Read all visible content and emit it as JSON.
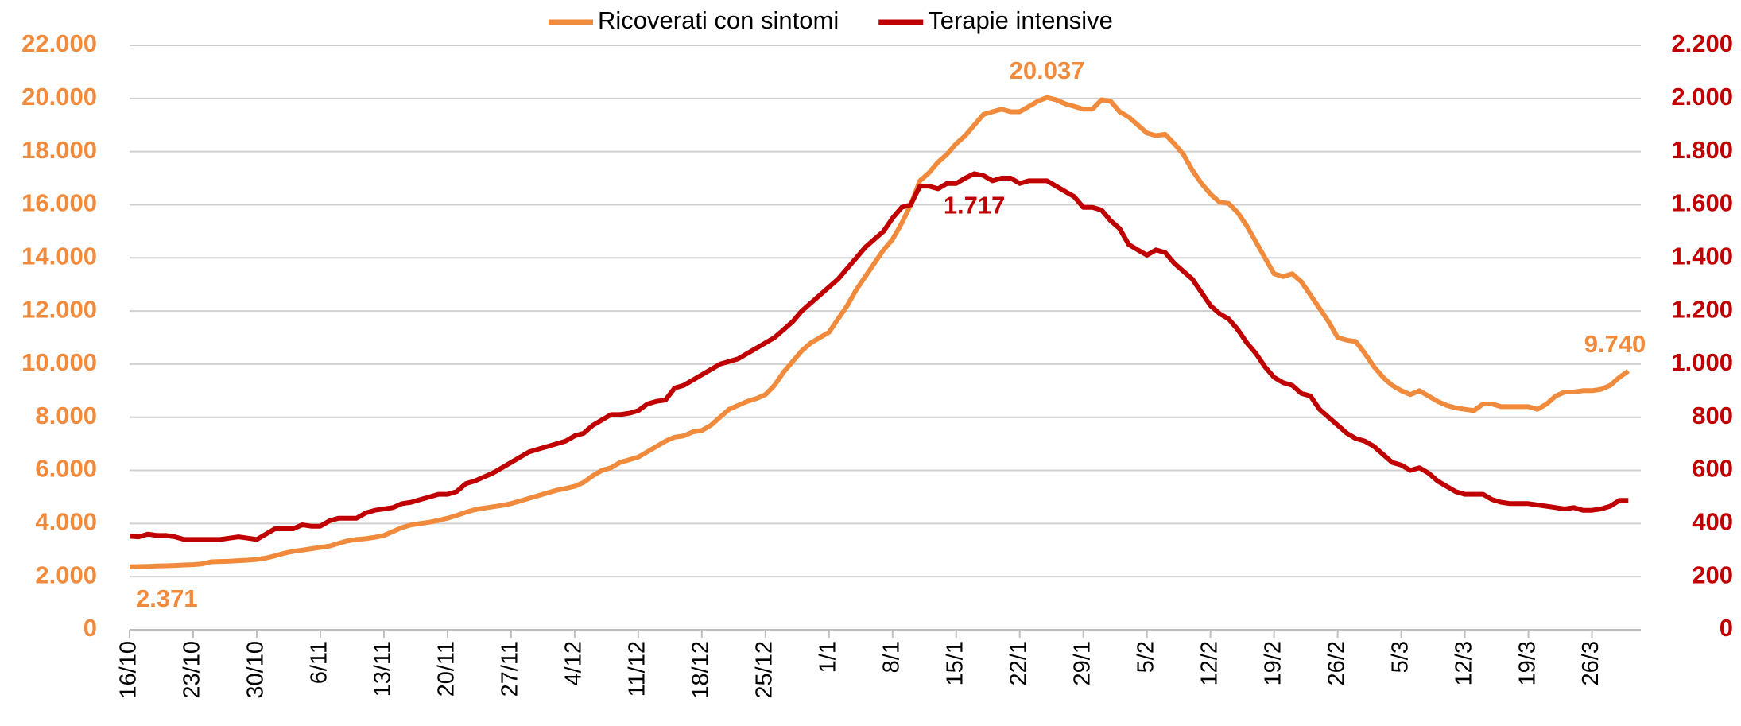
{
  "chart_data": {
    "type": "line",
    "categories": [
      "16/10",
      null,
      null,
      null,
      null,
      null,
      null,
      "23/10",
      null,
      null,
      null,
      null,
      null,
      null,
      "30/10",
      null,
      null,
      null,
      null,
      null,
      null,
      "6/11",
      null,
      null,
      null,
      null,
      null,
      null,
      "13/11",
      null,
      null,
      null,
      null,
      null,
      null,
      "20/11",
      null,
      null,
      null,
      null,
      null,
      null,
      "27/11",
      null,
      null,
      null,
      null,
      null,
      null,
      "4/12",
      null,
      null,
      null,
      null,
      null,
      null,
      "11/12",
      null,
      null,
      null,
      null,
      null,
      null,
      "18/12",
      null,
      null,
      null,
      null,
      null,
      null,
      "25/12",
      null,
      null,
      null,
      null,
      null,
      null,
      "1/1",
      null,
      null,
      null,
      null,
      null,
      null,
      "8/1",
      null,
      null,
      null,
      null,
      null,
      null,
      "15/1",
      null,
      null,
      null,
      null,
      null,
      null,
      "22/1",
      null,
      null,
      null,
      null,
      null,
      null,
      "29/1",
      null,
      null,
      null,
      null,
      null,
      null,
      "5/2",
      null,
      null,
      null,
      null,
      null,
      null,
      "12/2",
      null,
      null,
      null,
      null,
      null,
      null,
      "19/2",
      null,
      null,
      null,
      null,
      null,
      null,
      "26/2",
      null,
      null,
      null,
      null,
      null,
      null,
      "5/3",
      null,
      null,
      null,
      null,
      null,
      null,
      "12/3",
      null,
      null,
      null,
      null,
      null,
      null,
      "19/3",
      null,
      null,
      null,
      null,
      null,
      null,
      "26/3",
      null,
      null,
      null,
      null
    ],
    "series": [
      {
        "name": "Ricoverati con sintomi",
        "color": "#f08a3c",
        "values": [
          2371,
          2380,
          2390,
          2400,
          2410,
          2420,
          2440,
          2450,
          2480,
          2560,
          2570,
          2580,
          2600,
          2620,
          2650,
          2700,
          2780,
          2880,
          2950,
          3000,
          3050,
          3100,
          3150,
          3250,
          3350,
          3400,
          3430,
          3480,
          3550,
          3700,
          3850,
          3950,
          4000,
          4050,
          4120,
          4200,
          4300,
          4420,
          4520,
          4580,
          4630,
          4680,
          4750,
          4850,
          4950,
          5050,
          5150,
          5250,
          5320,
          5400,
          5550,
          5800,
          6000,
          6100,
          6300,
          6400,
          6500,
          6700,
          6900,
          7100,
          7250,
          7300,
          7450,
          7500,
          7700,
          8000,
          8300,
          8450,
          8600,
          8700,
          8850,
          9200,
          9700,
          10100,
          10500,
          10800,
          11000,
          11200,
          11700,
          12200,
          12800,
          13300,
          13800,
          14300,
          14700,
          15300,
          16000,
          16900,
          17200,
          17600,
          17900,
          18300,
          18600,
          19000,
          19400,
          19500,
          19600,
          19500,
          19500,
          19700,
          19900,
          20037,
          19950,
          19800,
          19700,
          19600,
          19600,
          19950,
          19900,
          19500,
          19300,
          19000,
          18700,
          18600,
          18650,
          18300,
          17900,
          17300,
          16800,
          16400,
          16100,
          16050,
          15700,
          15200,
          14600,
          14000,
          13400,
          13300,
          13400,
          13100,
          12600,
          12100,
          11600,
          11000,
          10900,
          10850,
          10400,
          9900,
          9500,
          9200,
          9000,
          8850,
          9000,
          8800,
          8600,
          8450,
          8350,
          8300,
          8250,
          8500,
          8500,
          8400,
          8400,
          8400,
          8400,
          8300,
          8500,
          8800,
          8950,
          8950,
          9000,
          9000,
          9050,
          9200,
          9500,
          9740
        ],
        "value_labels": [
          "2.371",
          null,
          null,
          null,
          null,
          null,
          null,
          null,
          null,
          null,
          null,
          null,
          null,
          null,
          null,
          null,
          null,
          null,
          null,
          null,
          null,
          null,
          null,
          null,
          null,
          null,
          null,
          null,
          null,
          null,
          null,
          null,
          null,
          null,
          null,
          null,
          null,
          null,
          null,
          null,
          null,
          null,
          null,
          null,
          null,
          null,
          null,
          null,
          null,
          null,
          null,
          null,
          null,
          null,
          null,
          null,
          null,
          null,
          null,
          null,
          null,
          null,
          null,
          null,
          null,
          null,
          null,
          null,
          null,
          null,
          null,
          null,
          null,
          null,
          null,
          null,
          null,
          null,
          null,
          null,
          null,
          null,
          null,
          null,
          null,
          null,
          null,
          null,
          null,
          null,
          null,
          null,
          null,
          null,
          null,
          null,
          null,
          null,
          null,
          null,
          null,
          "20.037",
          null,
          null,
          null,
          null,
          null,
          null,
          null,
          null,
          null,
          null,
          null,
          null,
          null,
          null,
          null,
          null,
          null,
          null,
          null,
          null,
          null,
          null,
          null,
          null,
          null,
          null,
          null,
          null,
          null,
          null,
          null,
          null,
          null,
          null,
          null,
          null,
          null,
          null,
          null,
          null,
          null,
          null,
          null,
          null,
          null,
          null,
          null,
          null,
          null,
          null,
          null,
          null,
          null,
          null,
          null,
          null,
          null,
          null,
          null,
          null,
          null,
          null,
          null,
          "9.740"
        ]
      },
      {
        "name": "Terapie intensive",
        "color": "#c00000",
        "axis": "y2",
        "values": [
          352,
          350,
          360,
          355,
          355,
          350,
          340,
          340,
          340,
          340,
          340,
          345,
          350,
          345,
          340,
          360,
          380,
          380,
          380,
          395,
          390,
          390,
          410,
          420,
          420,
          420,
          440,
          450,
          455,
          460,
          475,
          480,
          490,
          500,
          510,
          510,
          520,
          550,
          560,
          575,
          590,
          610,
          630,
          650,
          670,
          680,
          690,
          700,
          710,
          730,
          740,
          770,
          790,
          810,
          810,
          815,
          825,
          850,
          860,
          865,
          910,
          920,
          940,
          960,
          980,
          1000,
          1010,
          1020,
          1040,
          1060,
          1080,
          1100,
          1130,
          1160,
          1200,
          1230,
          1260,
          1290,
          1320,
          1360,
          1400,
          1440,
          1470,
          1500,
          1550,
          1590,
          1600,
          1670,
          1670,
          1660,
          1680,
          1680,
          1700,
          1717,
          1710,
          1690,
          1700,
          1700,
          1680,
          1690,
          1690,
          1690,
          1670,
          1650,
          1630,
          1590,
          1590,
          1580,
          1540,
          1510,
          1450,
          1430,
          1410,
          1430,
          1420,
          1380,
          1350,
          1320,
          1270,
          1220,
          1190,
          1170,
          1130,
          1080,
          1040,
          990,
          950,
          930,
          920,
          890,
          880,
          830,
          800,
          770,
          740,
          720,
          710,
          690,
          660,
          630,
          620,
          600,
          610,
          590,
          560,
          540,
          520,
          510,
          510,
          510,
          490,
          480,
          475,
          475,
          475,
          470,
          465,
          460,
          455,
          460,
          450,
          450,
          455,
          465,
          487,
          487
        ],
        "value_labels": [
          null,
          null,
          null,
          null,
          null,
          null,
          null,
          null,
          null,
          null,
          null,
          null,
          null,
          null,
          null,
          null,
          null,
          null,
          null,
          null,
          null,
          null,
          null,
          null,
          null,
          null,
          null,
          null,
          null,
          null,
          null,
          null,
          null,
          null,
          null,
          null,
          null,
          null,
          null,
          null,
          null,
          null,
          null,
          null,
          null,
          null,
          null,
          null,
          null,
          null,
          null,
          null,
          null,
          null,
          null,
          null,
          null,
          null,
          null,
          null,
          null,
          null,
          null,
          null,
          null,
          null,
          null,
          null,
          null,
          null,
          null,
          null,
          null,
          null,
          null,
          null,
          null,
          null,
          null,
          null,
          null,
          null,
          null,
          null,
          null,
          null,
          null,
          null,
          null,
          null,
          null,
          null,
          null,
          "1.717",
          null,
          null,
          null,
          null,
          null,
          null,
          null,
          null,
          null,
          null,
          null,
          null,
          null,
          null,
          null,
          null,
          null,
          null,
          null,
          null,
          null,
          null,
          null,
          null,
          null,
          null,
          null,
          null,
          null,
          null,
          null,
          null,
          null,
          null,
          null,
          null,
          null,
          null,
          null,
          null,
          null,
          null,
          null,
          null,
          null,
          null,
          null,
          null,
          null,
          null,
          null,
          null,
          null,
          null,
          null,
          null,
          null,
          null,
          null,
          null,
          null,
          null,
          null,
          null,
          null,
          null,
          null,
          null,
          null,
          null,
          null,
          null
        ]
      }
    ],
    "ylim": [
      0,
      22000
    ],
    "yticks": [
      0,
      {
        "value": 2000,
        "label": "2.000"
      },
      {
        "value": 4000,
        "label": "4.000"
      },
      {
        "value": 6000,
        "label": "6.000"
      },
      {
        "value": 8000,
        "label": "8.000"
      },
      {
        "value": 10000,
        "label": "10.000"
      },
      {
        "value": 12000,
        "label": "12.000"
      },
      {
        "value": 14000,
        "label": "14.000"
      },
      {
        "value": 16000,
        "label": "16.000"
      },
      {
        "value": 18000,
        "label": "18.000"
      },
      {
        "value": 20000,
        "label": "20.000"
      },
      {
        "value": 22000,
        "label": "22.000"
      }
    ],
    "y2lim": [
      0,
      2200
    ],
    "y2ticks": [
      0,
      200,
      400,
      600,
      800,
      {
        "value": 1000,
        "label": "1.000"
      },
      {
        "value": 1200,
        "label": "1.200"
      },
      {
        "value": 1400,
        "label": "1.400"
      },
      {
        "value": 1600,
        "label": "1.600"
      },
      {
        "value": 1800,
        "label": "1.800"
      },
      {
        "value": 2000,
        "label": "2.000"
      },
      {
        "value": 2200,
        "label": "2.200"
      }
    ],
    "grid": true,
    "legend": "top"
  }
}
